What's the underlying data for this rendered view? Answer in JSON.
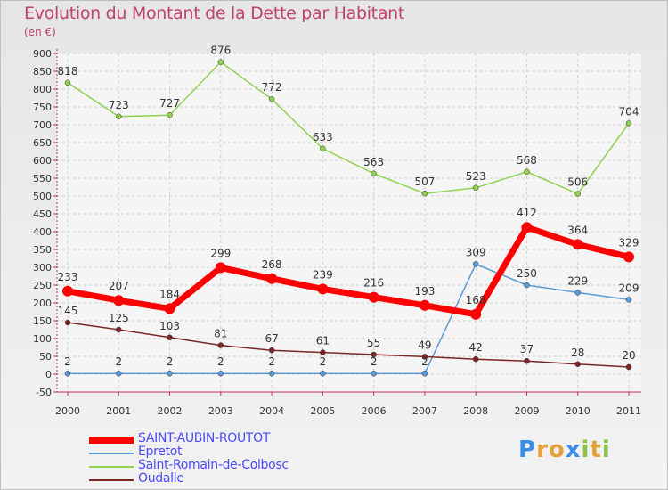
{
  "title": "Evolution du Montant de la Dette par Habitant",
  "unit": "(en €)",
  "brand": {
    "text": "Proxiti",
    "letters": [
      "P",
      "r",
      "o",
      "x",
      "i",
      "t",
      "i"
    ],
    "colors": [
      "#3a8ee6",
      "#e6a23a",
      "#e6a23a",
      "#3a8ee6",
      "#8bc34a",
      "#e6a23a",
      "#8bc34a"
    ]
  },
  "chart_data": {
    "type": "line",
    "title": "Evolution du Montant de la Dette par Habitant",
    "ylabel": "(en €)",
    "x": [
      "2000",
      "2001",
      "2002",
      "2003",
      "2004",
      "2005",
      "2006",
      "2007",
      "2008",
      "2009",
      "2010",
      "2011"
    ],
    "ylim": [
      -50,
      900
    ],
    "yticks": [
      -50,
      0,
      50,
      100,
      150,
      200,
      250,
      300,
      350,
      400,
      450,
      500,
      550,
      600,
      650,
      700,
      750,
      800,
      850,
      900
    ],
    "grid": true,
    "legend_position": "bottom-left",
    "series": [
      {
        "name": "SAINT-AUBIN-ROUTOT",
        "color": "#ff0000",
        "values": [
          233,
          207,
          184,
          299,
          268,
          239,
          216,
          193,
          168,
          412,
          364,
          329
        ],
        "labels": [
          "233",
          "207",
          "184",
          "299",
          "268",
          "239",
          "216",
          "193",
          "168",
          "412",
          "364",
          "329"
        ]
      },
      {
        "name": "Epretot",
        "color": "#5b9bd5",
        "values": [
          2,
          2,
          2,
          2,
          2,
          2,
          2,
          2,
          309,
          250,
          229,
          209
        ],
        "labels": [
          "2",
          "2",
          "2",
          "2",
          "2",
          "2",
          "2",
          "2",
          "309",
          "250",
          "229",
          "209"
        ]
      },
      {
        "name": "Saint-Romain-de-Colbosc",
        "color": "#8fd14f",
        "values": [
          818,
          723,
          727,
          876,
          772,
          633,
          563,
          507,
          523,
          568,
          506,
          704
        ],
        "labels": [
          "818",
          "723",
          "727",
          "876",
          "772",
          "633",
          "563",
          "507",
          "523",
          "568",
          "506",
          "704"
        ]
      },
      {
        "name": "Oudalle",
        "color": "#7b2626",
        "values": [
          145,
          125,
          103,
          81,
          67,
          61,
          55,
          49,
          42,
          37,
          28,
          20
        ],
        "labels": [
          "145",
          "125",
          "103",
          "81",
          "67",
          "61",
          "55",
          "49",
          "42",
          "37",
          "28",
          "20"
        ]
      }
    ]
  }
}
